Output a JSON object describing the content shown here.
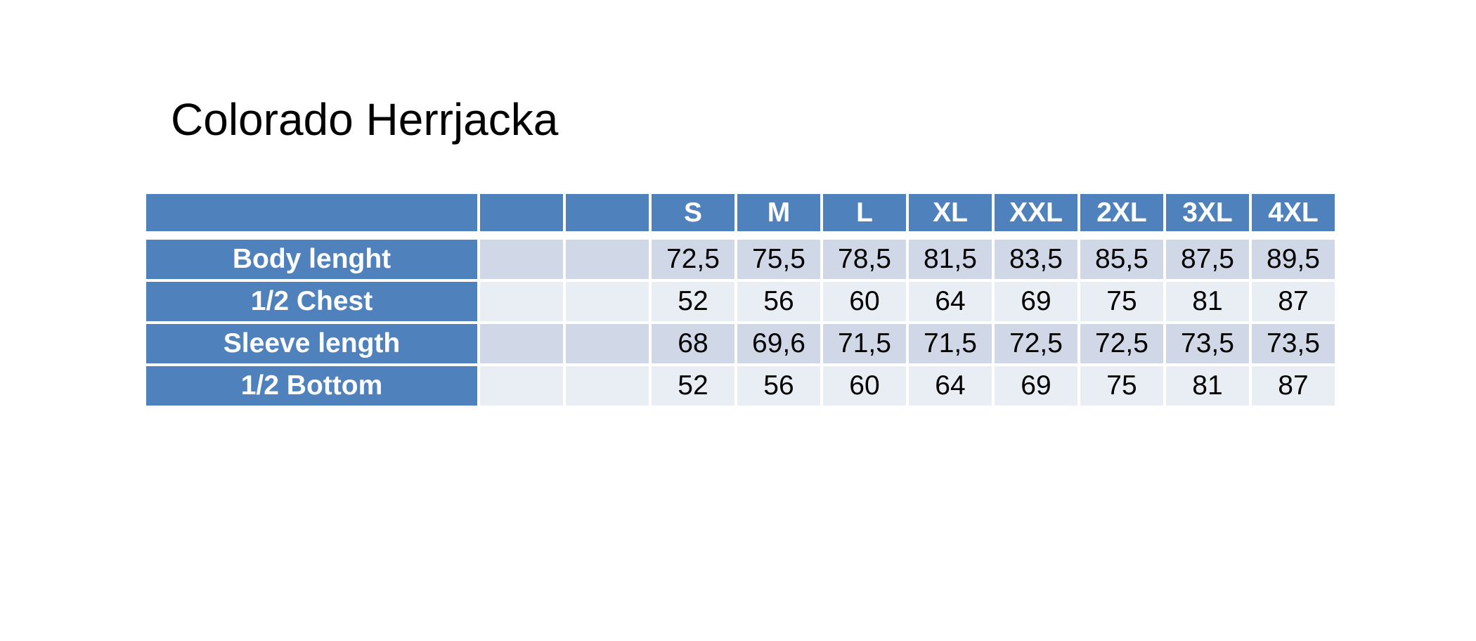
{
  "title": "Colorado Herrjacka",
  "table": {
    "sizes": [
      "S",
      "M",
      "L",
      "XL",
      "XXL",
      "2XL",
      "3XL",
      "4XL"
    ],
    "rows": [
      {
        "label": "Body lenght",
        "values": [
          "72,5",
          "75,5",
          "78,5",
          "81,5",
          "83,5",
          "85,5",
          "87,5",
          "89,5"
        ]
      },
      {
        "label": "1/2 Chest",
        "values": [
          "52",
          "56",
          "60",
          "64",
          "69",
          "75",
          "81",
          "87"
        ]
      },
      {
        "label": "Sleeve length",
        "values": [
          "68",
          "69,6",
          "71,5",
          "71,5",
          "72,5",
          "72,5",
          "73,5",
          "73,5"
        ]
      },
      {
        "label": "1/2 Bottom",
        "values": [
          "52",
          "56",
          "60",
          "64",
          "69",
          "75",
          "81",
          "87"
        ]
      }
    ]
  }
}
